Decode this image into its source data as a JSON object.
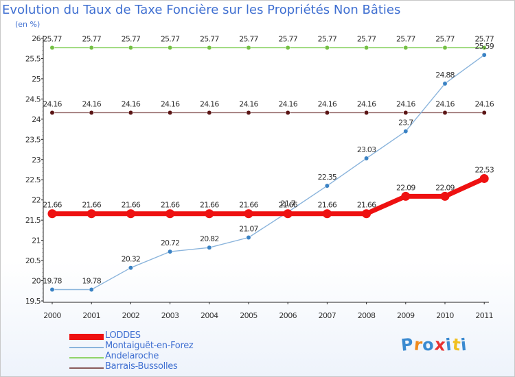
{
  "chart_data": {
    "type": "line",
    "title": "Evolution du Taux de Taxe Foncière sur les Propriétés Non Bâties",
    "unit_label": "(en %)",
    "x": [
      "2000",
      "2001",
      "2002",
      "2003",
      "2004",
      "2005",
      "2006",
      "2007",
      "2008",
      "2009",
      "2010",
      "2011"
    ],
    "ylim": [
      19.5,
      26
    ],
    "yticks": [
      "19.5",
      "20",
      "20.5",
      "21",
      "21.5",
      "22",
      "22.5",
      "23",
      "23.5",
      "24",
      "24.5",
      "25",
      "25.5",
      "26"
    ],
    "series": [
      {
        "name": "Andelaroche",
        "color": "#8fd46a",
        "point_color": "#74c044",
        "values": [
          25.77,
          25.77,
          25.77,
          25.77,
          25.77,
          25.77,
          25.77,
          25.77,
          25.77,
          25.77,
          25.77,
          25.77
        ],
        "labels": [
          "25.77",
          "25.77",
          "25.77",
          "25.77",
          "25.77",
          "25.77",
          "25.77",
          "25.77",
          "25.77",
          "25.77",
          "25.77",
          "25.77"
        ]
      },
      {
        "name": "Barrais-Bussolles",
        "color": "#8a5a5a",
        "point_color": "#5a1414",
        "values": [
          24.16,
          24.16,
          24.16,
          24.16,
          24.16,
          24.16,
          24.16,
          24.16,
          24.16,
          24.16,
          24.16,
          24.16
        ],
        "labels": [
          "24.16",
          "24.16",
          "24.16",
          "24.16",
          "24.16",
          "24.16",
          "24.16",
          "24.16",
          "24.16",
          "24.16",
          "24.16",
          "24.16"
        ]
      },
      {
        "name": "Montaiguët-en-Forez",
        "color": "#8ab4dc",
        "point_color": "#3a82c4",
        "values": [
          19.78,
          19.78,
          20.32,
          20.72,
          20.82,
          21.07,
          21.7,
          22.35,
          23.03,
          23.7,
          24.88,
          25.59
        ],
        "labels": [
          "19.78",
          "19.78",
          "20.32",
          "20.72",
          "20.82",
          "21.07",
          "21.7",
          "22.35",
          "23.03",
          "23.7",
          "24.88",
          "25.59"
        ]
      },
      {
        "name": "LODDES",
        "color": "#ee1111",
        "point_color": "#ee1111",
        "values": [
          21.66,
          21.66,
          21.66,
          21.66,
          21.66,
          21.66,
          21.66,
          21.66,
          21.66,
          22.09,
          22.09,
          22.53
        ],
        "labels": [
          "21.66",
          "21.66",
          "21.66",
          "21.66",
          "21.66",
          "21.66",
          "21.66",
          "21.66",
          "21.66",
          "22.09",
          "22.09",
          "22.53"
        ]
      }
    ],
    "legend": [
      {
        "name": "LODDES",
        "color": "#ee1111",
        "thick": true
      },
      {
        "name": "Montaiguët-en-Forez",
        "color": "#8ab4dc",
        "thick": false
      },
      {
        "name": "Andelaroche",
        "color": "#8fd46a",
        "thick": false
      },
      {
        "name": "Barrais-Bussolles",
        "color": "#8a5a5a",
        "thick": false
      }
    ],
    "legend_placement": "bottom-left"
  },
  "logo": {
    "letters": [
      "P",
      "r",
      "o",
      "x",
      "i",
      "t",
      "i"
    ],
    "colors": [
      "#3a8ad0",
      "#f08a1c",
      "#3a8ad0",
      "#e83030",
      "#3a8ad0",
      "#f0c020",
      "#3a8ad0"
    ]
  }
}
